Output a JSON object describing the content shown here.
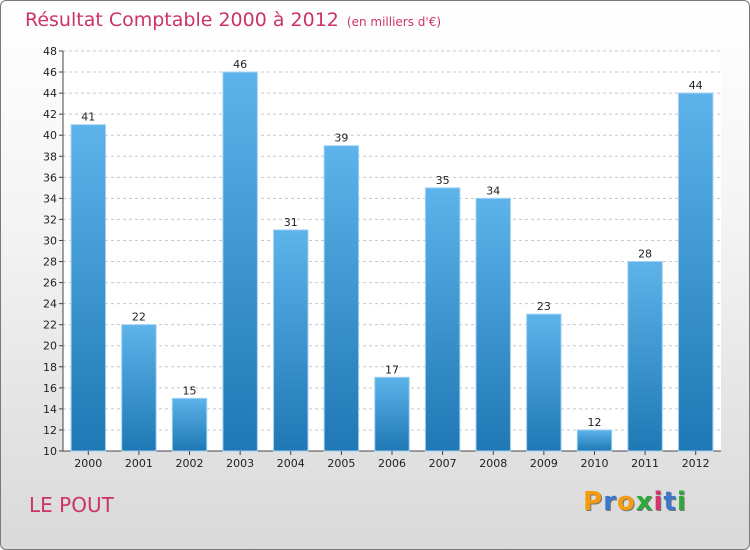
{
  "title": "Résultat Comptable 2000 à 2012",
  "subtitle": "(en milliers d'€)",
  "place": "LE POUT",
  "logo": {
    "letters": [
      "P",
      "r",
      "o",
      "x",
      "i",
      "t",
      "i"
    ],
    "colors": [
      "#f39c12",
      "#3a78c9",
      "#f39c12",
      "#2eaa3a",
      "#d6336c",
      "#3a78c9",
      "#2eaa3a"
    ]
  },
  "colors": {
    "bar": "#4aa3df",
    "bar_dark": "#1f78b4",
    "title": "#cc3366"
  },
  "chart_data": {
    "type": "bar",
    "categories": [
      "2000",
      "2001",
      "2002",
      "2003",
      "2004",
      "2005",
      "2006",
      "2007",
      "2008",
      "2009",
      "2010",
      "2011",
      "2012"
    ],
    "values": [
      41,
      22,
      15,
      46,
      31,
      39,
      17,
      35,
      34,
      23,
      12,
      28,
      44
    ],
    "ylim": [
      10,
      48
    ],
    "yticks": [
      10,
      12,
      14,
      16,
      18,
      20,
      22,
      24,
      26,
      28,
      30,
      32,
      34,
      36,
      38,
      40,
      42,
      44,
      46,
      48
    ],
    "grid": true
  }
}
